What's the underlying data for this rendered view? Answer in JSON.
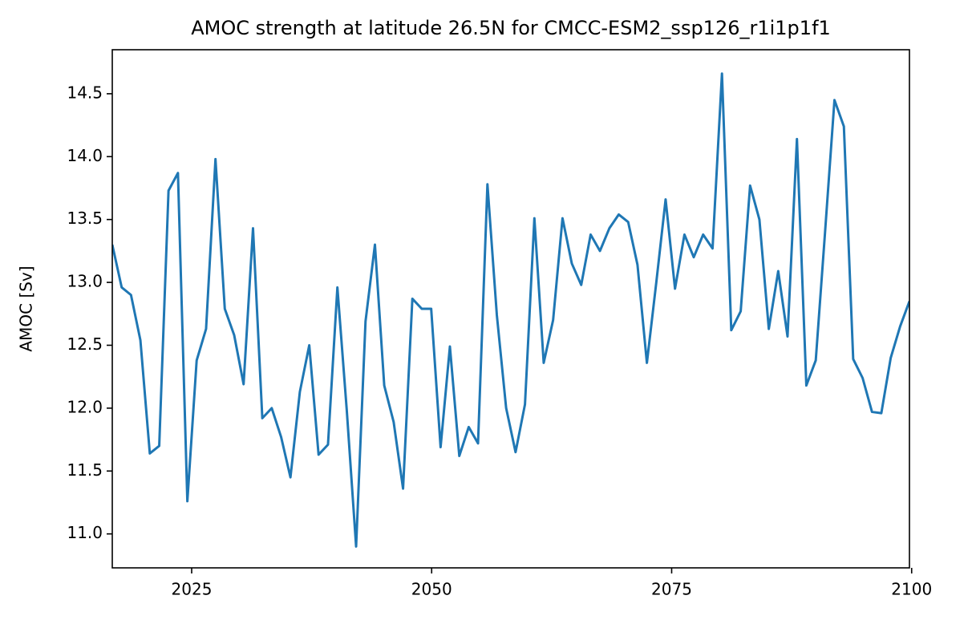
{
  "chart_data": {
    "type": "line",
    "title": "AMOC strength at latitude 26.5N for CMCC-ESM2_ssp126_r1i1p1f1",
    "y_label": "AMOC [Sv]",
    "x": [
      2016.73,
      2017.71,
      2018.68,
      2019.66,
      2020.64,
      2021.62,
      2022.59,
      2023.57,
      2024.55,
      2025.52,
      2026.5,
      2027.48,
      2028.45,
      2029.43,
      2030.41,
      2031.39,
      2032.36,
      2033.34,
      2034.32,
      2035.29,
      2036.27,
      2037.25,
      2038.22,
      2039.2,
      2040.18,
      2041.16,
      2042.13,
      2043.11,
      2044.09,
      2045.06,
      2046.04,
      2047.02,
      2047.99,
      2048.97,
      2049.95,
      2050.93,
      2051.9,
      2052.88,
      2053.86,
      2054.83,
      2055.81,
      2056.79,
      2057.76,
      2058.74,
      2059.72,
      2060.7,
      2061.67,
      2062.65,
      2063.63,
      2064.6,
      2065.58,
      2066.56,
      2067.53,
      2068.51,
      2069.49,
      2070.47,
      2071.44,
      2072.42,
      2073.4,
      2074.37,
      2075.35,
      2076.33,
      2077.3,
      2078.28,
      2079.26,
      2080.24,
      2081.21,
      2082.19,
      2083.17,
      2084.14,
      2085.12,
      2086.1,
      2087.07,
      2088.05,
      2089.03,
      2090.01,
      2090.98,
      2091.96,
      2092.94,
      2093.91,
      2094.89,
      2095.87,
      2096.84,
      2097.82,
      2098.8,
      2099.77
    ],
    "series": [
      {
        "name": "AMOC",
        "color": "#1f77b4",
        "values": [
          13.3,
          12.96,
          12.9,
          12.54,
          11.64,
          11.7,
          13.73,
          13.87,
          11.26,
          12.38,
          12.63,
          13.98,
          12.79,
          12.58,
          12.19,
          13.43,
          11.92,
          12.0,
          11.77,
          11.45,
          12.13,
          12.5,
          11.63,
          11.71,
          12.96,
          11.98,
          10.9,
          12.69,
          13.3,
          12.18,
          11.89,
          11.36,
          12.87,
          12.79,
          12.79,
          11.69,
          12.49,
          11.62,
          11.85,
          11.72,
          13.78,
          12.74,
          12.0,
          11.65,
          12.03,
          13.51,
          12.36,
          12.7,
          13.51,
          13.15,
          12.98,
          13.38,
          13.25,
          13.43,
          13.54,
          13.48,
          13.14,
          12.36,
          13.0,
          13.66,
          12.95,
          13.38,
          13.2,
          13.38,
          13.27,
          14.66,
          12.62,
          12.77,
          13.77,
          13.5,
          12.63,
          13.09,
          12.57,
          14.14,
          12.18,
          12.38,
          13.4,
          14.45,
          14.24,
          12.39,
          12.24,
          11.97,
          11.96,
          12.4,
          12.65,
          12.85
        ]
      }
    ],
    "xlim": [
      2016.73,
      2099.77
    ],
    "xticks": [
      2025,
      2050,
      2075,
      2100
    ],
    "ylim": [
      10.73,
      14.85
    ],
    "yticks": [
      {
        "value": 11,
        "label": "11.0"
      },
      11.5,
      {
        "value": 12,
        "label": "12.0"
      },
      12.5,
      {
        "value": 13,
        "label": "13.0"
      },
      13.5,
      {
        "value": 14,
        "label": "14.0"
      },
      14.5
    ],
    "grid": false
  }
}
